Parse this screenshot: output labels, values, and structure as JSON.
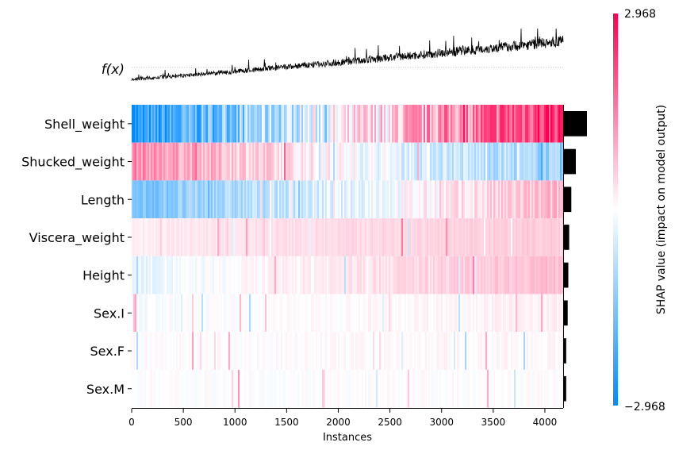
{
  "chart_data": {
    "type": "heatmap",
    "title": "",
    "xlabel": "Instances",
    "ylabel": "",
    "fx_label": "f(x)",
    "xlim": [
      0,
      4177
    ],
    "x_ticks": [
      0,
      500,
      1000,
      1500,
      2000,
      2500,
      3000,
      3500,
      4000
    ],
    "n_instances": 4177,
    "features": [
      "Shell_weight",
      "Shucked_weight",
      "Length",
      "Viscera_weight",
      "Height",
      "Sex.I",
      "Sex.F",
      "Sex.M"
    ],
    "mean_abs_shap_bars": [
      1.0,
      0.48,
      0.27,
      0.17,
      0.13,
      0.1,
      0.03,
      0.03
    ],
    "shap_trend_start": [
      -2.9,
      1.4,
      -1.6,
      0.2,
      -0.3,
      -0.1,
      0.0,
      0.0
    ],
    "shap_trend_end": [
      2.6,
      -1.2,
      0.8,
      0.6,
      0.8,
      0.2,
      0.1,
      0.0
    ],
    "fx_trend": {
      "start": 0.0,
      "end": 0.8
    },
    "colorbar": {
      "label": "SHAP value (impact on model output)",
      "min": -2.968,
      "max": 2.968,
      "min_label": "−2.968",
      "max_label": "2.968",
      "color_low": "#008bfb",
      "color_mid": "#ffffff",
      "color_high": "#ff0051"
    }
  }
}
